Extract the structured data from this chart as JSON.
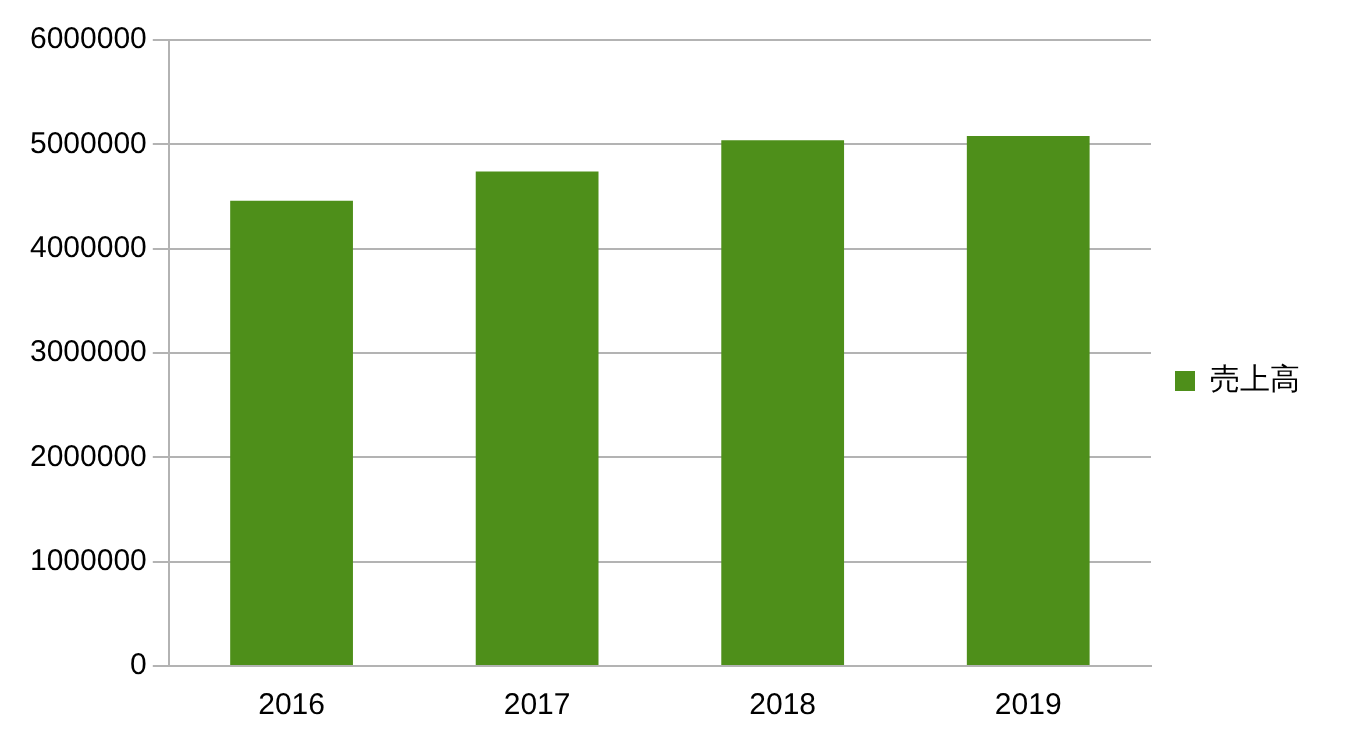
{
  "chart_data": {
    "type": "bar",
    "categories": [
      "2016",
      "2017",
      "2018",
      "2019"
    ],
    "series": [
      {
        "name": "売上高",
        "color": "#4e8f1a",
        "values": [
          4460000,
          4740000,
          5040000,
          5080000
        ]
      }
    ],
    "ylim": [
      0,
      6000000
    ],
    "yticks": [
      0,
      1000000,
      2000000,
      3000000,
      4000000,
      5000000,
      6000000
    ],
    "grid": "y",
    "legend": "right"
  }
}
